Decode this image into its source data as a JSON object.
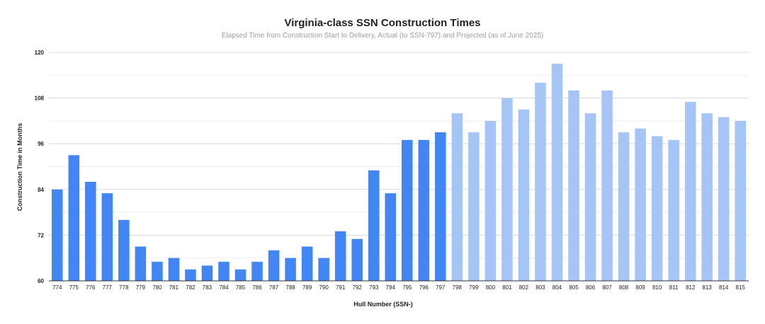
{
  "chart_data": {
    "type": "bar",
    "title": "Virginia-class SSN Construction Times",
    "subtitle": "Elapsed Time from Construction Start to Delivery, Actual (to SSN-797) and Projected (as of June 2025)",
    "xlabel": "Hull Number (SSN-)",
    "ylabel": "Construction Time in Months",
    "ylim": [
      60,
      120
    ],
    "yticks": [
      "60",
      "72",
      "84",
      "96",
      "108",
      "120"
    ],
    "grid": true,
    "legend": "none",
    "categories": [
      "774",
      "775",
      "776",
      "777",
      "778",
      "779",
      "780",
      "781",
      "782",
      "783",
      "784",
      "785",
      "786",
      "787",
      "788",
      "789",
      "790",
      "791",
      "792",
      "793",
      "794",
      "795",
      "796",
      "797",
      "798",
      "799",
      "800",
      "801",
      "802",
      "803",
      "804",
      "805",
      "806",
      "807",
      "808",
      "809",
      "810",
      "811",
      "812",
      "813",
      "814",
      "815"
    ],
    "values": [
      84,
      93,
      86,
      83,
      76,
      69,
      65,
      66,
      63,
      64,
      65,
      63,
      65,
      68,
      66,
      69,
      66,
      73,
      71,
      89,
      83,
      97,
      97,
      99,
      104,
      99,
      102,
      108,
      105,
      112,
      117,
      110,
      104,
      110,
      99,
      100,
      98,
      97,
      107,
      104,
      103,
      102
    ],
    "status": [
      "actual",
      "actual",
      "actual",
      "actual",
      "actual",
      "actual",
      "actual",
      "actual",
      "actual",
      "actual",
      "actual",
      "actual",
      "actual",
      "actual",
      "actual",
      "actual",
      "actual",
      "actual",
      "actual",
      "actual",
      "actual",
      "actual",
      "actual",
      "actual",
      "projected",
      "projected",
      "projected",
      "projected",
      "projected",
      "projected",
      "projected",
      "projected",
      "projected",
      "projected",
      "projected",
      "projected",
      "projected",
      "projected",
      "projected",
      "projected",
      "projected",
      "projected"
    ],
    "colors": {
      "actual": "#4285f4",
      "projected": "#a5c5f7",
      "gridline": "#dadada",
      "minor_gridline": "#eeeeee",
      "axis": "#333333"
    }
  }
}
